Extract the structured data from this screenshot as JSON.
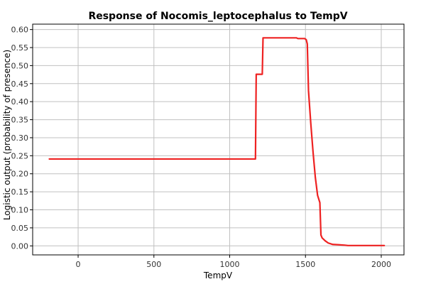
{
  "chart_data": {
    "type": "line",
    "title": "Response of Nocomis_leptocephalus to TempV",
    "xlabel": "TempV",
    "ylabel": "Logistic output (probability of presence)",
    "xlim": [
      -300,
      2150
    ],
    "ylim": [
      -0.025,
      0.615
    ],
    "x_ticks": [
      0,
      500,
      1000,
      1500,
      2000
    ],
    "y_ticks": [
      0.0,
      0.05,
      0.1,
      0.15,
      0.2,
      0.25,
      0.3,
      0.35,
      0.4,
      0.45,
      0.5,
      0.55,
      0.6
    ],
    "x_tick_labels": [
      "0",
      "500",
      "1000",
      "1500",
      "2000"
    ],
    "y_tick_labels": [
      "0.00",
      "0.05",
      "0.10",
      "0.15",
      "0.20",
      "0.25",
      "0.30",
      "0.35",
      "0.40",
      "0.45",
      "0.50",
      "0.55",
      "0.60"
    ],
    "grid": true,
    "series": [
      {
        "color": "#ee2222",
        "x": [
          -190,
          1170,
          1175,
          1200,
          1215,
          1220,
          1440,
          1450,
          1495,
          1505,
          1512,
          1520,
          1535,
          1550,
          1565,
          1580,
          1595,
          1602,
          1610,
          1630,
          1650,
          1680,
          1720,
          1760,
          1780,
          2020
        ],
        "y": [
          0.241,
          0.241,
          0.476,
          0.476,
          0.476,
          0.577,
          0.577,
          0.575,
          0.575,
          0.572,
          0.56,
          0.43,
          0.34,
          0.26,
          0.19,
          0.14,
          0.12,
          0.03,
          0.022,
          0.014,
          0.008,
          0.004,
          0.003,
          0.002,
          0.001,
          0.001
        ]
      }
    ]
  }
}
